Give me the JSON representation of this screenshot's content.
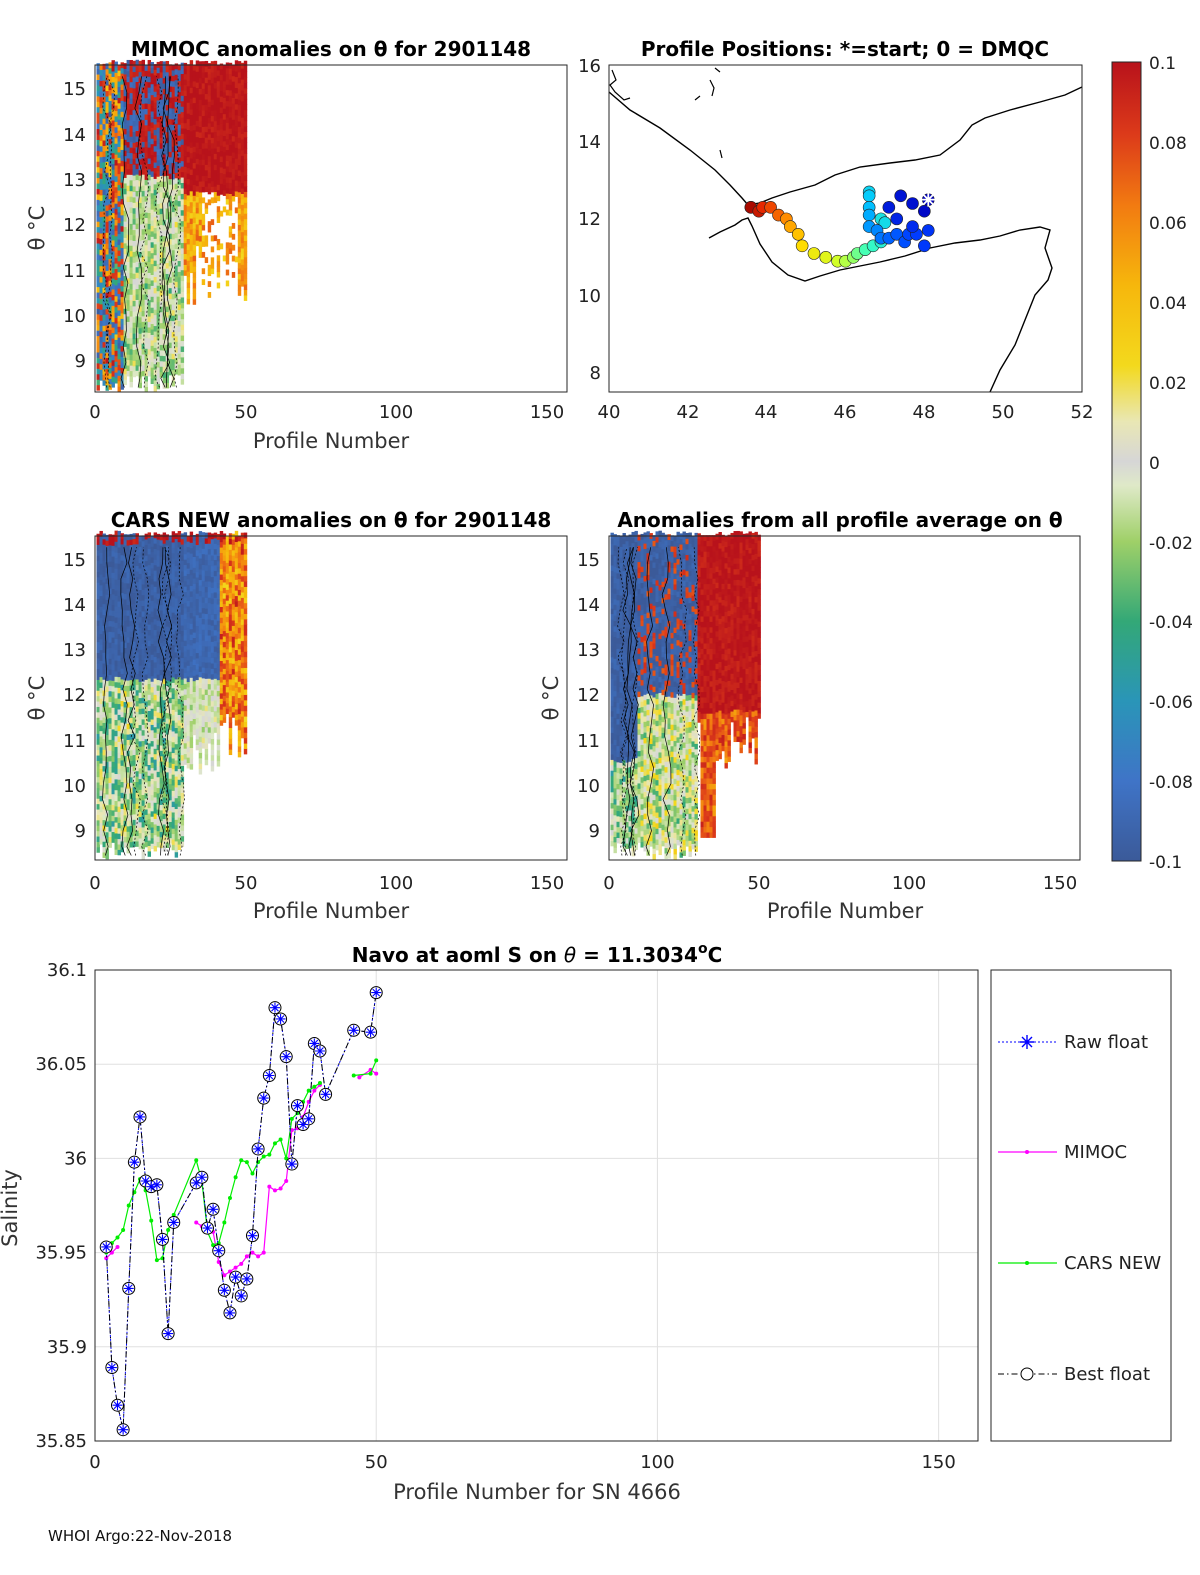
{
  "footer": "WHOI Argo:22-Nov-2018",
  "panels": {
    "mimoc": {
      "title": "MIMOC anomalies on θ  for 2901148",
      "xlabel": "Profile Number",
      "ylabel": "θ °C",
      "xticks": [
        "0",
        "50",
        "100",
        "150"
      ],
      "yticks": [
        "9",
        "10",
        "11",
        "12",
        "13",
        "14",
        "15"
      ]
    },
    "positions": {
      "title": "Profile Positions: *=start; 0 = DMQC",
      "xticks": [
        "40",
        "42",
        "44",
        "46",
        "48",
        "50",
        "52"
      ],
      "yticks": [
        "8",
        "10",
        "12",
        "14",
        "16"
      ]
    },
    "cars": {
      "title": "CARS NEW anomalies on θ for 2901148",
      "xlabel": "Profile Number",
      "ylabel": "θ °C",
      "xticks": [
        "0",
        "50",
        "100",
        "150"
      ],
      "yticks": [
        "9",
        "10",
        "11",
        "12",
        "13",
        "14",
        "15"
      ]
    },
    "allavg": {
      "title": "Anomalies from all profile average on θ",
      "xlabel": "Profile Number",
      "ylabel": "θ °C",
      "xticks": [
        "0",
        "50",
        "100",
        "150"
      ],
      "yticks": [
        "9",
        "10",
        "11",
        "12",
        "13",
        "14",
        "15"
      ]
    },
    "colorbar": {
      "ticks": [
        "0.1",
        "0.08",
        "0.06",
        "0.04",
        "0.02",
        "0",
        "-0.02",
        "-0.04",
        "-0.06",
        "-0.08",
        "-0.1"
      ]
    }
  },
  "chart_data": [
    {
      "type": "heatmap",
      "id": "mimoc",
      "title": "MIMOC anomalies on θ  for 2901148",
      "xlabel": "Profile Number",
      "ylabel": "θ °C",
      "xlim": [
        0,
        157
      ],
      "ylim": [
        8.3,
        15.5
      ],
      "color_range": [
        -0.1,
        0.1
      ],
      "profiles_shown": [
        1,
        50
      ]
    },
    {
      "type": "scatter",
      "id": "positions",
      "title": "Profile Positions: *=start; 0 = DMQC",
      "xlim": [
        40,
        52
      ],
      "ylim": [
        7.5,
        16
      ],
      "start_marker": {
        "lon": 48.1,
        "lat": 12.5
      },
      "points": [
        {
          "lon": 48.1,
          "lat": 12.5,
          "c": 0.0
        },
        {
          "lon": 48.0,
          "lat": 12.2,
          "c": 0.02
        },
        {
          "lon": 47.7,
          "lat": 12.4,
          "c": 0.04
        },
        {
          "lon": 47.4,
          "lat": 12.6,
          "c": 0.05
        },
        {
          "lon": 47.1,
          "lat": 12.3,
          "c": 0.07
        },
        {
          "lon": 47.3,
          "lat": 12.0,
          "c": 0.09
        },
        {
          "lon": 47.7,
          "lat": 11.8,
          "c": 0.11
        },
        {
          "lon": 48.1,
          "lat": 11.7,
          "c": 0.13
        },
        {
          "lon": 48.0,
          "lat": 11.3,
          "c": 0.14
        },
        {
          "lon": 47.8,
          "lat": 11.6,
          "c": 0.15
        },
        {
          "lon": 47.6,
          "lat": 11.6,
          "c": 0.16
        },
        {
          "lon": 47.5,
          "lat": 11.4,
          "c": 0.17
        },
        {
          "lon": 47.3,
          "lat": 11.6,
          "c": 0.18
        },
        {
          "lon": 47.1,
          "lat": 11.5,
          "c": 0.19
        },
        {
          "lon": 46.9,
          "lat": 11.5,
          "c": 0.21
        },
        {
          "lon": 46.8,
          "lat": 11.7,
          "c": 0.23
        },
        {
          "lon": 46.6,
          "lat": 11.8,
          "c": 0.25
        },
        {
          "lon": 46.6,
          "lat": 12.1,
          "c": 0.27
        },
        {
          "lon": 46.6,
          "lat": 12.3,
          "c": 0.29
        },
        {
          "lon": 46.6,
          "lat": 12.6,
          "c": 0.31
        },
        {
          "lon": 46.6,
          "lat": 12.7,
          "c": 0.33
        },
        {
          "lon": 47.0,
          "lat": 11.9,
          "c": 0.35
        },
        {
          "lon": 46.9,
          "lat": 12.0,
          "c": 0.37
        },
        {
          "lon": 46.9,
          "lat": 11.4,
          "c": 0.4
        },
        {
          "lon": 46.7,
          "lat": 11.3,
          "c": 0.43
        },
        {
          "lon": 46.5,
          "lat": 11.2,
          "c": 0.46
        },
        {
          "lon": 46.3,
          "lat": 11.1,
          "c": 0.5
        },
        {
          "lon": 46.2,
          "lat": 11.0,
          "c": 0.54
        },
        {
          "lon": 46.0,
          "lat": 10.9,
          "c": 0.57
        },
        {
          "lon": 45.8,
          "lat": 10.9,
          "c": 0.6
        },
        {
          "lon": 45.5,
          "lat": 11.0,
          "c": 0.63
        },
        {
          "lon": 45.2,
          "lat": 11.1,
          "c": 0.66
        },
        {
          "lon": 44.9,
          "lat": 11.3,
          "c": 0.7
        },
        {
          "lon": 44.8,
          "lat": 11.6,
          "c": 0.74
        },
        {
          "lon": 44.6,
          "lat": 11.8,
          "c": 0.78
        },
        {
          "lon": 44.5,
          "lat": 12.0,
          "c": 0.82
        },
        {
          "lon": 44.3,
          "lat": 12.1,
          "c": 0.86
        },
        {
          "lon": 44.1,
          "lat": 12.3,
          "c": 0.89
        },
        {
          "lon": 43.9,
          "lat": 12.3,
          "c": 0.92
        },
        {
          "lon": 43.8,
          "lat": 12.2,
          "c": 0.95
        },
        {
          "lon": 43.6,
          "lat": 12.3,
          "c": 0.98
        },
        {
          "lon": 43.6,
          "lat": 12.3,
          "c": 1.0
        }
      ]
    },
    {
      "type": "heatmap",
      "id": "cars",
      "title": "CARS NEW anomalies on θ for 2901148",
      "xlabel": "Profile Number",
      "ylabel": "θ °C",
      "xlim": [
        0,
        157
      ],
      "ylim": [
        8.3,
        15.5
      ],
      "color_range": [
        -0.1,
        0.1
      ],
      "profiles_shown": [
        1,
        50
      ]
    },
    {
      "type": "heatmap",
      "id": "allavg",
      "title": "Anomalies from all profile average on θ",
      "xlabel": "Profile Number",
      "ylabel": "θ °C",
      "xlim": [
        0,
        157
      ],
      "ylim": [
        8.3,
        15.5
      ],
      "color_range": [
        -0.1,
        0.1
      ],
      "profiles_shown": [
        1,
        50
      ]
    },
    {
      "type": "line",
      "id": "salinity",
      "title": "Navo at aoml S on θ = 11.3034°C",
      "title_parts": {
        "pre": "Navo at aoml S on ",
        "theta": "θ",
        "mid": " = 11.3034",
        "sup": "o",
        "post": "C"
      },
      "xlabel": "Profile Number for SN 4666",
      "ylabel": "Salinity",
      "xlim": [
        0,
        157
      ],
      "ylim": [
        35.85,
        36.1
      ],
      "xticks": [
        "0",
        "50",
        "100",
        "150"
      ],
      "yticks": [
        "35.85",
        "35.9",
        "35.95",
        "36",
        "36.05",
        "36.1"
      ],
      "legend": [
        "Raw float",
        "MIMOC",
        "CARS NEW",
        "Best float"
      ],
      "series": [
        {
          "name": "Best float",
          "color": "#000000",
          "x": [
            2,
            3,
            4,
            5,
            6,
            7,
            8,
            9,
            10,
            11,
            12,
            13,
            14,
            18,
            19,
            20,
            21,
            22,
            23,
            24,
            25,
            26,
            27,
            28,
            29,
            30,
            31,
            32,
            33,
            34,
            35,
            36,
            37,
            38,
            39,
            40,
            41,
            46,
            49,
            50
          ],
          "y": [
            35.953,
            35.889,
            35.869,
            35.856,
            35.931,
            35.998,
            36.022,
            35.988,
            35.985,
            35.986,
            35.957,
            35.907,
            35.966,
            35.987,
            35.99,
            35.963,
            35.973,
            35.951,
            35.93,
            35.918,
            35.937,
            35.927,
            35.936,
            35.959,
            36.005,
            36.032,
            36.044,
            36.08,
            36.074,
            36.054,
            35.997,
            36.028,
            36.018,
            36.021,
            36.061,
            36.057,
            36.034,
            36.068,
            36.067,
            36.088
          ]
        },
        {
          "name": "MIMOC",
          "color": "#ff00ff",
          "x": [
            2,
            3,
            4,
            18,
            19,
            20,
            21,
            22,
            23,
            24,
            25,
            26,
            27,
            28,
            29,
            30,
            31,
            32,
            33,
            34,
            35,
            36,
            37,
            38,
            39,
            40,
            47,
            49,
            50
          ],
          "y": [
            35.947,
            35.95,
            35.953,
            35.966,
            35.964,
            35.963,
            35.961,
            35.945,
            35.938,
            35.94,
            35.942,
            35.944,
            35.948,
            35.95,
            35.948,
            35.95,
            35.985,
            35.983,
            35.984,
            35.988,
            36.015,
            36.016,
            36.022,
            36.03,
            36.036,
            36.039,
            36.043,
            36.047,
            36.045
          ]
        },
        {
          "name": "CARS NEW",
          "color": "#00ee00",
          "x": [
            2,
            3,
            4,
            5,
            6,
            7,
            8,
            9,
            10,
            11,
            12,
            13,
            14,
            18,
            19,
            20,
            21,
            22,
            23,
            24,
            25,
            26,
            27,
            28,
            29,
            30,
            31,
            32,
            33,
            34,
            35,
            36,
            37,
            38,
            39,
            40,
            46,
            49,
            50
          ],
          "y": [
            35.95,
            35.955,
            35.958,
            35.962,
            35.975,
            35.982,
            35.989,
            35.983,
            35.967,
            35.946,
            35.947,
            35.962,
            35.97,
            35.999,
            35.988,
            35.961,
            35.954,
            35.955,
            35.966,
            35.979,
            35.99,
            35.999,
            35.998,
            35.992,
            35.998,
            36.001,
            36.002,
            36.008,
            36.01,
            36.0,
            36.021,
            36.024,
            36.03,
            36.036,
            36.038,
            36.04,
            36.044,
            36.045,
            36.052
          ]
        },
        {
          "name": "Raw float",
          "color": "#0000ff",
          "x": [
            2,
            3,
            4,
            5,
            6,
            7,
            8,
            9,
            10,
            11,
            12,
            13,
            14,
            18,
            19,
            20,
            21,
            22,
            23,
            24,
            25,
            26,
            27,
            28,
            29,
            30,
            31,
            32,
            33,
            34,
            35,
            36,
            37,
            38,
            39,
            40,
            41,
            46,
            49,
            50
          ],
          "y": [
            35.953,
            35.889,
            35.869,
            35.856,
            35.931,
            35.998,
            36.022,
            35.988,
            35.985,
            35.986,
            35.957,
            35.907,
            35.966,
            35.987,
            35.99,
            35.963,
            35.973,
            35.951,
            35.93,
            35.918,
            35.937,
            35.927,
            35.936,
            35.959,
            36.005,
            36.032,
            36.044,
            36.08,
            36.074,
            36.054,
            35.997,
            36.028,
            36.018,
            36.021,
            36.061,
            36.057,
            36.034,
            36.068,
            36.067,
            36.088
          ]
        }
      ]
    }
  ],
  "colors": {
    "anomaly_positive": "#c0161b",
    "anomaly_negative": "#3a5b9a",
    "anomaly_zero": "#d6d6d6",
    "grid": "#e0e0e0"
  }
}
